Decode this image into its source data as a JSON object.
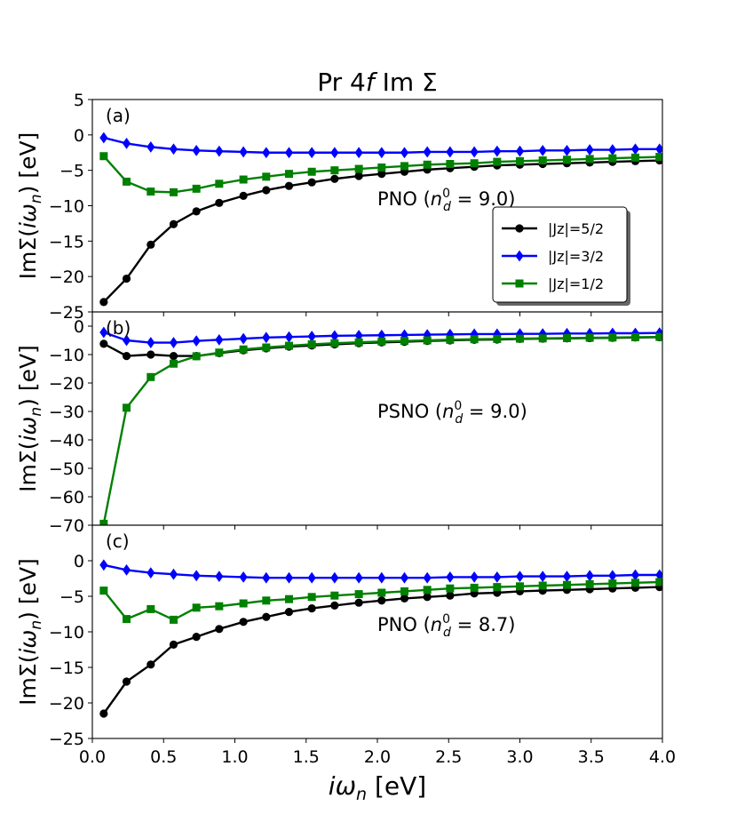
{
  "chart_data": {
    "type": "line",
    "title": "Pr 4f Im Σ",
    "title_parts": [
      "Pr 4",
      "f",
      " Im Σ"
    ],
    "xlabel": "iω_n [eV]",
    "xlabel_parts": [
      "i",
      "ω",
      "n",
      " [eV]"
    ],
    "xlim": [
      0.0,
      4.0
    ],
    "xticks": [
      0.0,
      0.5,
      1.0,
      1.5,
      2.0,
      2.5,
      3.0,
      3.5,
      4.0
    ],
    "xtick_labels": [
      "0.0",
      "0.5",
      "1.0",
      "1.5",
      "2.0",
      "2.5",
      "3.0",
      "3.5",
      "4.0"
    ],
    "ylabel_parts": [
      "ImΣ(",
      "i",
      "ω",
      "n",
      ") [eV]"
    ],
    "legend": {
      "location": "right, panel (a)",
      "entries": [
        {
          "label": "|Jz|=5/2",
          "color": "#000000",
          "marker": "circle"
        },
        {
          "label": "|Jz|=3/2",
          "color": "#0000ff",
          "marker": "diamond"
        },
        {
          "label": "|Jz|=1/2",
          "color": "#008000",
          "marker": "square"
        }
      ]
    },
    "x": [
      0.08,
      0.24,
      0.41,
      0.57,
      0.73,
      0.89,
      1.06,
      1.22,
      1.38,
      1.54,
      1.7,
      1.87,
      2.03,
      2.19,
      2.35,
      2.51,
      2.68,
      2.84,
      3.0,
      3.16,
      3.33,
      3.49,
      3.65,
      3.81,
      3.98
    ],
    "panels": [
      {
        "label": "(a)",
        "annotation": {
          "prefix": "PNO (",
          "n": "n",
          "sup": "0",
          "sub": "d",
          "suffix": " = 9.0)"
        },
        "ylim": [
          -25,
          5
        ],
        "yticks": [
          5,
          0,
          -5,
          -10,
          -15,
          -20,
          -25
        ],
        "ytick_labels": [
          "5",
          "0",
          "−5",
          "−10",
          "−15",
          "−20",
          "−25"
        ],
        "series": [
          {
            "name": "|Jz|=5/2",
            "color": "#000000",
            "marker": "circle",
            "values": [
              -23.6,
              -20.3,
              -15.5,
              -12.6,
              -10.8,
              -9.6,
              -8.6,
              -7.8,
              -7.2,
              -6.7,
              -6.2,
              -5.8,
              -5.5,
              -5.2,
              -4.9,
              -4.7,
              -4.5,
              -4.3,
              -4.2,
              -4.1,
              -4.0,
              -3.9,
              -3.8,
              -3.7,
              -3.6
            ]
          },
          {
            "name": "|Jz|=3/2",
            "color": "#0000ff",
            "marker": "diamond",
            "values": [
              -0.4,
              -1.2,
              -1.7,
              -2.0,
              -2.2,
              -2.3,
              -2.4,
              -2.5,
              -2.5,
              -2.5,
              -2.5,
              -2.5,
              -2.5,
              -2.5,
              -2.4,
              -2.4,
              -2.4,
              -2.3,
              -2.3,
              -2.2,
              -2.2,
              -2.1,
              -2.1,
              -2.0,
              -2.0
            ]
          },
          {
            "name": "|Jz|=1/2",
            "color": "#008000",
            "marker": "square",
            "values": [
              -3.0,
              -6.6,
              -8.0,
              -8.1,
              -7.6,
              -6.9,
              -6.3,
              -5.9,
              -5.5,
              -5.2,
              -5.0,
              -4.8,
              -4.6,
              -4.4,
              -4.2,
              -4.1,
              -4.0,
              -3.8,
              -3.7,
              -3.6,
              -3.5,
              -3.4,
              -3.3,
              -3.2,
              -3.1
            ]
          }
        ]
      },
      {
        "label": "(b)",
        "annotation": {
          "prefix": "PSNO (",
          "n": "n",
          "sup": "0",
          "sub": "d",
          "suffix": " = 9.0)"
        },
        "ylim": [
          -70,
          5
        ],
        "yticks": [
          0,
          -10,
          -20,
          -30,
          -40,
          -50,
          -60,
          -70
        ],
        "ytick_labels": [
          "0",
          "−10",
          "−20",
          "−30",
          "−40",
          "−50",
          "−60",
          "−70"
        ],
        "series": [
          {
            "name": "|Jz|=5/2",
            "color": "#000000",
            "marker": "circle",
            "values": [
              -6.2,
              -10.5,
              -10.0,
              -10.5,
              -10.5,
              -9.5,
              -8.5,
              -7.8,
              -7.2,
              -6.8,
              -6.4,
              -6.0,
              -5.7,
              -5.5,
              -5.2,
              -5.0,
              -4.8,
              -4.7,
              -4.5,
              -4.4,
              -4.3,
              -4.2,
              -4.1,
              -4.0,
              -3.9
            ]
          },
          {
            "name": "|Jz|=3/2",
            "color": "#0000ff",
            "marker": "diamond",
            "values": [
              -2.2,
              -5.0,
              -5.8,
              -5.8,
              -5.2,
              -4.8,
              -4.4,
              -4.0,
              -3.8,
              -3.6,
              -3.4,
              -3.3,
              -3.2,
              -3.1,
              -3.0,
              -2.9,
              -2.8,
              -2.8,
              -2.7,
              -2.7,
              -2.6,
              -2.6,
              -2.5,
              -2.5,
              -2.4
            ]
          },
          {
            "name": "|Jz|=1/2",
            "color": "#008000",
            "marker": "square",
            "values": [
              -69.5,
              -28.7,
              -17.9,
              -13.2,
              -10.6,
              -9.3,
              -8.2,
              -7.5,
              -6.9,
              -6.4,
              -6.0,
              -5.7,
              -5.4,
              -5.2,
              -5.0,
              -4.8,
              -4.6,
              -4.5,
              -4.4,
              -4.3,
              -4.2,
              -4.1,
              -4.0,
              -3.9,
              -3.8
            ]
          }
        ]
      },
      {
        "label": "(c)",
        "annotation": {
          "prefix": "PNO (",
          "n": "n",
          "sup": "0",
          "sub": "d",
          "suffix": " = 8.7)"
        },
        "ylim": [
          -25,
          5
        ],
        "yticks": [
          0,
          -5,
          -10,
          -15,
          -20,
          -25
        ],
        "ytick_labels": [
          "0",
          "−5",
          "−10",
          "−15",
          "−20",
          "−25"
        ],
        "series": [
          {
            "name": "|Jz|=5/2",
            "color": "#000000",
            "marker": "circle",
            "values": [
              -21.5,
              -17.0,
              -14.6,
              -11.8,
              -10.7,
              -9.6,
              -8.6,
              -7.9,
              -7.2,
              -6.7,
              -6.3,
              -5.9,
              -5.6,
              -5.3,
              -5.1,
              -4.9,
              -4.6,
              -4.5,
              -4.3,
              -4.2,
              -4.1,
              -4.0,
              -3.9,
              -3.8,
              -3.7
            ]
          },
          {
            "name": "|Jz|=3/2",
            "color": "#0000ff",
            "marker": "diamond",
            "values": [
              -0.6,
              -1.3,
              -1.7,
              -1.9,
              -2.1,
              -2.2,
              -2.3,
              -2.4,
              -2.4,
              -2.4,
              -2.4,
              -2.4,
              -2.4,
              -2.4,
              -2.4,
              -2.3,
              -2.3,
              -2.3,
              -2.2,
              -2.2,
              -2.2,
              -2.1,
              -2.1,
              -2.0,
              -2.0
            ]
          },
          {
            "name": "|Jz|=1/2",
            "color": "#008000",
            "marker": "square",
            "values": [
              -4.2,
              -8.2,
              -6.8,
              -8.3,
              -6.6,
              -6.4,
              -6.0,
              -5.6,
              -5.4,
              -5.1,
              -4.9,
              -4.7,
              -4.5,
              -4.3,
              -4.1,
              -3.9,
              -3.8,
              -3.7,
              -3.6,
              -3.5,
              -3.4,
              -3.3,
              -3.2,
              -3.1,
              -3.0
            ]
          }
        ]
      }
    ]
  }
}
